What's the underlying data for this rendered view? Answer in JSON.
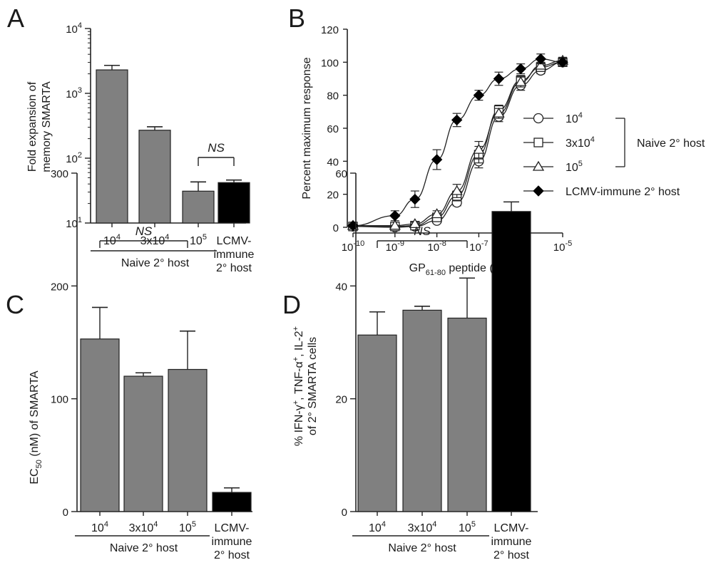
{
  "colors": {
    "gray_bar": "#808080",
    "black_bar": "#000000",
    "axis": "#222222"
  },
  "chart_data": [
    {
      "panel": "A",
      "type": "bar",
      "yscale": "log",
      "ylim": [
        10,
        10000
      ],
      "yticks": [
        {
          "value": 10,
          "base": "10",
          "exp": "1"
        },
        {
          "value": 100,
          "base": "10",
          "exp": "2"
        },
        {
          "value": 1000,
          "base": "10",
          "exp": "3"
        },
        {
          "value": 10000,
          "base": "10",
          "exp": "4"
        }
      ],
      "ylabel_lines": [
        "Fold expansion of",
        "memory SMARTA"
      ],
      "categories": [
        {
          "lines": [
            {
              "base": "10",
              "exp": "4"
            }
          ]
        },
        {
          "lines": [
            {
              "base": "3x10",
              "exp": "4"
            }
          ]
        },
        {
          "lines": [
            {
              "base": "10",
              "exp": "5"
            }
          ]
        },
        {
          "lines": [
            {
              "base": "LCMV-",
              "exp": ""
            },
            {
              "base": "immune",
              "exp": ""
            },
            {
              "base": "2° host",
              "exp": ""
            }
          ]
        }
      ],
      "values": [
        2300,
        270,
        31,
        42
      ],
      "errors": [
        2700,
        305,
        43,
        46
      ],
      "bar_colors": [
        "gray",
        "gray",
        "gray",
        "black"
      ],
      "group_label": "Naive 2° host",
      "group_span": [
        0,
        2
      ],
      "significance": {
        "from": 2,
        "to": 3,
        "text": "NS"
      }
    },
    {
      "panel": "B",
      "type": "line",
      "xscale": "log",
      "xlim": [
        1e-10,
        1e-05
      ],
      "ylim": [
        0,
        120
      ],
      "yticks": [
        0,
        20,
        40,
        60,
        80,
        100,
        120
      ],
      "xticks": [
        {
          "value": 1e-10,
          "base": "10",
          "exp": "-10"
        },
        {
          "value": 1e-09,
          "base": "10",
          "exp": "-9"
        },
        {
          "value": 1e-08,
          "base": "10",
          "exp": "-8"
        },
        {
          "value": 1e-07,
          "base": "10",
          "exp": "-7"
        },
        {
          "value": 1e-06,
          "base": "10",
          "exp": "-6"
        },
        {
          "value": 1e-05,
          "base": "10",
          "exp": "-5"
        }
      ],
      "ylabel": "Percent maximum response",
      "xlabel": {
        "pre": "GP",
        "sub": "61-80",
        "post": " peptide (M)"
      },
      "series": [
        {
          "name": {
            "base": "10",
            "exp": "4"
          },
          "marker": "circle",
          "x": [
            1e-10,
            1e-09,
            3e-09,
            1e-08,
            3e-08,
            1e-07,
            3e-07,
            1e-06,
            3e-06,
            1e-05
          ],
          "y": [
            0.5,
            0,
            0.5,
            4,
            15,
            40,
            67,
            86,
            95,
            100
          ],
          "err": [
            0,
            0,
            0,
            1,
            2,
            4,
            3,
            3,
            2,
            2
          ]
        },
        {
          "name": {
            "base": "3x10",
            "exp": "4"
          },
          "marker": "square",
          "x": [
            1e-10,
            1e-09,
            3e-09,
            1e-08,
            3e-08,
            1e-07,
            3e-07,
            1e-06,
            3e-06,
            1e-05
          ],
          "y": [
            0.5,
            0.5,
            1,
            6,
            19,
            44,
            71,
            89,
            97,
            100
          ],
          "err": [
            0,
            0,
            0,
            1,
            3,
            5,
            3,
            3,
            2,
            2
          ]
        },
        {
          "name": {
            "base": "10",
            "exp": "5"
          },
          "marker": "triangle",
          "x": [
            1e-10,
            1e-09,
            3e-09,
            1e-08,
            3e-08,
            1e-07,
            3e-07,
            1e-06,
            3e-06,
            1e-05
          ],
          "y": [
            1,
            1,
            2,
            8,
            22,
            47,
            69,
            88,
            98,
            101
          ],
          "err": [
            0,
            0,
            1,
            2,
            4,
            5,
            3,
            3,
            2,
            2
          ]
        },
        {
          "name": {
            "base": "LCMV-immune 2° host",
            "exp": ""
          },
          "marker": "diamond",
          "x": [
            1e-10,
            1e-09,
            3e-09,
            1e-08,
            3e-08,
            1e-07,
            3e-07,
            1e-06,
            3e-06,
            1e-05
          ],
          "y": [
            1,
            7,
            17,
            41,
            65,
            80,
            90,
            96,
            102,
            100
          ],
          "err": [
            1,
            3,
            5,
            6,
            4,
            3,
            4,
            3,
            3,
            2
          ]
        }
      ],
      "bracket_label": "Naive 2° host",
      "bracket_series": [
        0,
        2
      ]
    },
    {
      "panel": "C",
      "type": "bar",
      "yscale": "linear",
      "ylim": [
        0,
        300
      ],
      "yticks": [
        0,
        100,
        200,
        300
      ],
      "ylabel": {
        "pre": "EC",
        "sub": "50",
        "post": " (nM)  of  SMARTA"
      },
      "categories": [
        {
          "lines": [
            {
              "base": "10",
              "exp": "4"
            }
          ]
        },
        {
          "lines": [
            {
              "base": "3x10",
              "exp": "4"
            }
          ]
        },
        {
          "lines": [
            {
              "base": "10",
              "exp": "5"
            }
          ]
        },
        {
          "lines": [
            {
              "base": "LCMV-",
              "exp": ""
            },
            {
              "base": "immune",
              "exp": ""
            },
            {
              "base": "2° host",
              "exp": ""
            }
          ]
        }
      ],
      "values": [
        153,
        120,
        126,
        17
      ],
      "errors": [
        181,
        123,
        160,
        21
      ],
      "bar_colors": [
        "gray",
        "gray",
        "gray",
        "black"
      ],
      "group_label": "Naive 2° host",
      "group_span": [
        0,
        2
      ],
      "significance": {
        "from": 0,
        "to": 2,
        "text": "NS",
        "at": 240
      }
    },
    {
      "panel": "D",
      "type": "bar",
      "yscale": "linear",
      "ylim": [
        0,
        60
      ],
      "yticks": [
        0,
        20,
        40,
        60
      ],
      "ylabel_parts": [
        {
          "t": "% IFN-",
          "s": "n"
        },
        {
          "t": "γ",
          "s": "n"
        },
        {
          "t": "+",
          "s": "sup"
        },
        {
          "t": ", TNF-",
          "s": "n"
        },
        {
          "t": "α",
          "s": "n"
        },
        {
          "t": "+",
          "s": "sup"
        },
        {
          "t": ", IL-2",
          "s": "n"
        },
        {
          "t": "+",
          "s": "sup"
        }
      ],
      "ylabel_line2": "of 2° SMARTA cells",
      "categories": [
        {
          "lines": [
            {
              "base": "10",
              "exp": "4"
            }
          ]
        },
        {
          "lines": [
            {
              "base": "3x10",
              "exp": "4"
            }
          ]
        },
        {
          "lines": [
            {
              "base": "10",
              "exp": "5"
            }
          ]
        },
        {
          "lines": [
            {
              "base": "LCMV-",
              "exp": ""
            },
            {
              "base": "immune",
              "exp": ""
            },
            {
              "base": "2° host",
              "exp": ""
            }
          ]
        }
      ],
      "values": [
        31.3,
        35.7,
        34.3,
        53.2
      ],
      "errors": [
        35.4,
        36.4,
        41.4,
        54.9
      ],
      "bar_colors": [
        "gray",
        "gray",
        "gray",
        "black"
      ],
      "group_label": "Naive 2° host",
      "group_span": [
        0,
        2
      ],
      "significance": {
        "from": 0,
        "to": 2,
        "text": "NS",
        "at": 48
      }
    }
  ]
}
